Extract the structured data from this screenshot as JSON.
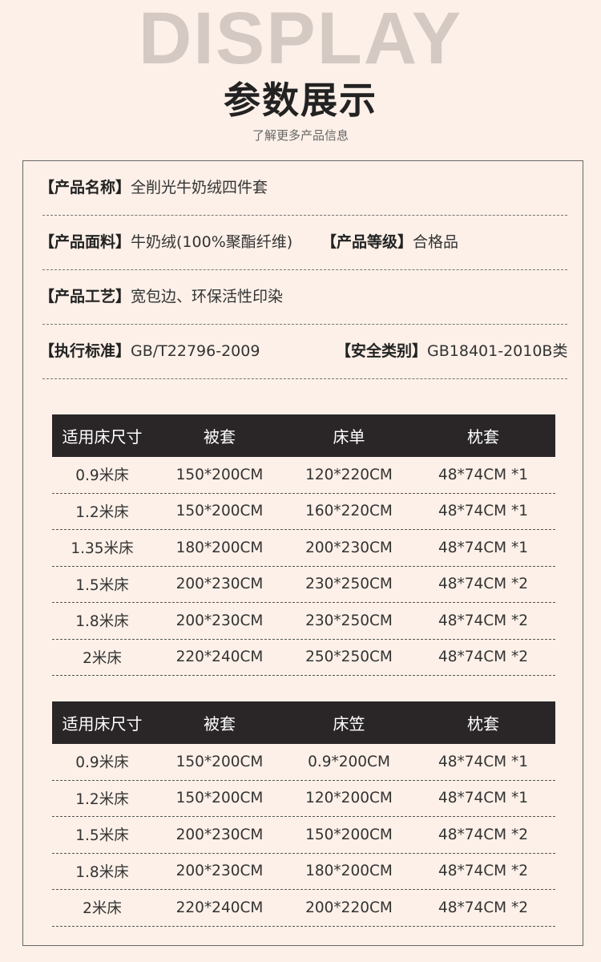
{
  "header": {
    "bg_text": "DISPLAY",
    "title": "参数展示",
    "subtitle": "了解更多产品信息"
  },
  "info": [
    [
      {
        "label": "【产品名称】",
        "value": "全削光牛奶绒四件套"
      }
    ],
    [
      {
        "label": "【产品面料】",
        "value": "牛奶绒(100%聚酯纤维)"
      },
      {
        "label": "【产品等级】",
        "value": "合格品"
      }
    ],
    [
      {
        "label": "【产品工艺】",
        "value": "宽包边、环保活性印染"
      }
    ],
    [
      {
        "label": "【执行标准】",
        "value": "GB/T22796-2009"
      },
      {
        "label": "【安全类别】",
        "value": "GB18401-2010B类"
      }
    ]
  ],
  "table1": {
    "headers": [
      "适用床尺寸",
      "被套",
      "床单",
      "枕套"
    ],
    "rows": [
      [
        "0.9米床",
        "150*200CM",
        "120*220CM",
        "48*74CM *1"
      ],
      [
        "1.2米床",
        "150*200CM",
        "160*220CM",
        "48*74CM *1"
      ],
      [
        "1.35米床",
        "180*200CM",
        "200*230CM",
        "48*74CM *1"
      ],
      [
        "1.5米床",
        "200*230CM",
        "230*250CM",
        "48*74CM *2"
      ],
      [
        "1.8米床",
        "200*230CM",
        "230*250CM",
        "48*74CM *2"
      ],
      [
        "2米床",
        "220*240CM",
        "250*250CM",
        "48*74CM *2"
      ]
    ]
  },
  "table2": {
    "headers": [
      "适用床尺寸",
      "被套",
      "床笠",
      "枕套"
    ],
    "rows": [
      [
        "0.9米床",
        "150*200CM",
        "0.9*200CM",
        "48*74CM *1"
      ],
      [
        "1.2米床",
        "150*200CM",
        "120*200CM",
        "48*74CM *1"
      ],
      [
        "1.5米床",
        "200*230CM",
        "150*200CM",
        "48*74CM *2"
      ],
      [
        "1.8米床",
        "200*230CM",
        "180*200CM",
        "48*74CM *2"
      ],
      [
        "2米床",
        "220*240CM",
        "200*220CM",
        "48*74CM *2"
      ]
    ]
  }
}
